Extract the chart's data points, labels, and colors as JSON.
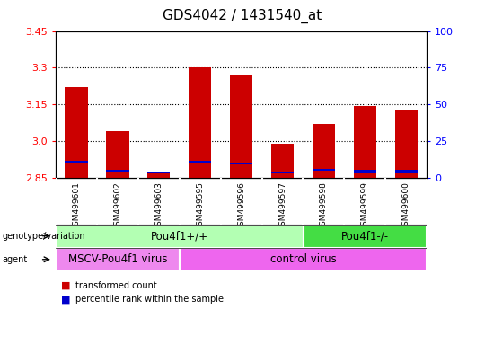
{
  "title": "GDS4042 / 1431540_at",
  "samples": [
    "GSM499601",
    "GSM499602",
    "GSM499603",
    "GSM499595",
    "GSM499596",
    "GSM499597",
    "GSM499598",
    "GSM499599",
    "GSM499600"
  ],
  "transformed_counts": [
    3.22,
    3.04,
    2.875,
    3.3,
    3.27,
    2.99,
    3.07,
    3.145,
    3.13
  ],
  "percentile_values": [
    2.91,
    2.875,
    2.868,
    2.91,
    2.905,
    2.868,
    2.878,
    2.873,
    2.873
  ],
  "ymin": 2.85,
  "ymax": 3.45,
  "yticks_left": [
    2.85,
    3.0,
    3.15,
    3.3,
    3.45
  ],
  "yticks_right": [
    0,
    25,
    50,
    75,
    100
  ],
  "bar_color": "#cc0000",
  "blue_color": "#0000cc",
  "bar_width": 0.55,
  "genotype_groups": [
    {
      "label": "Pou4f1+/+",
      "start": 0,
      "end": 6,
      "color": "#b3ffb3"
    },
    {
      "label": "Pou4f1-/-",
      "start": 6,
      "end": 9,
      "color": "#44dd44"
    }
  ],
  "agent_groups": [
    {
      "label": "MSCV-Pou4f1 virus",
      "start": 0,
      "end": 3,
      "color": "#ee88ee"
    },
    {
      "label": "control virus",
      "start": 3,
      "end": 9,
      "color": "#ee66ee"
    }
  ],
  "legend_items": [
    {
      "label": "transformed count",
      "color": "#cc0000"
    },
    {
      "label": "percentile rank within the sample",
      "color": "#0000cc"
    }
  ],
  "grid_lines": [
    3.0,
    3.15,
    3.3
  ],
  "title_fontsize": 11,
  "tick_fontsize": 8,
  "label_fontsize": 8.5
}
